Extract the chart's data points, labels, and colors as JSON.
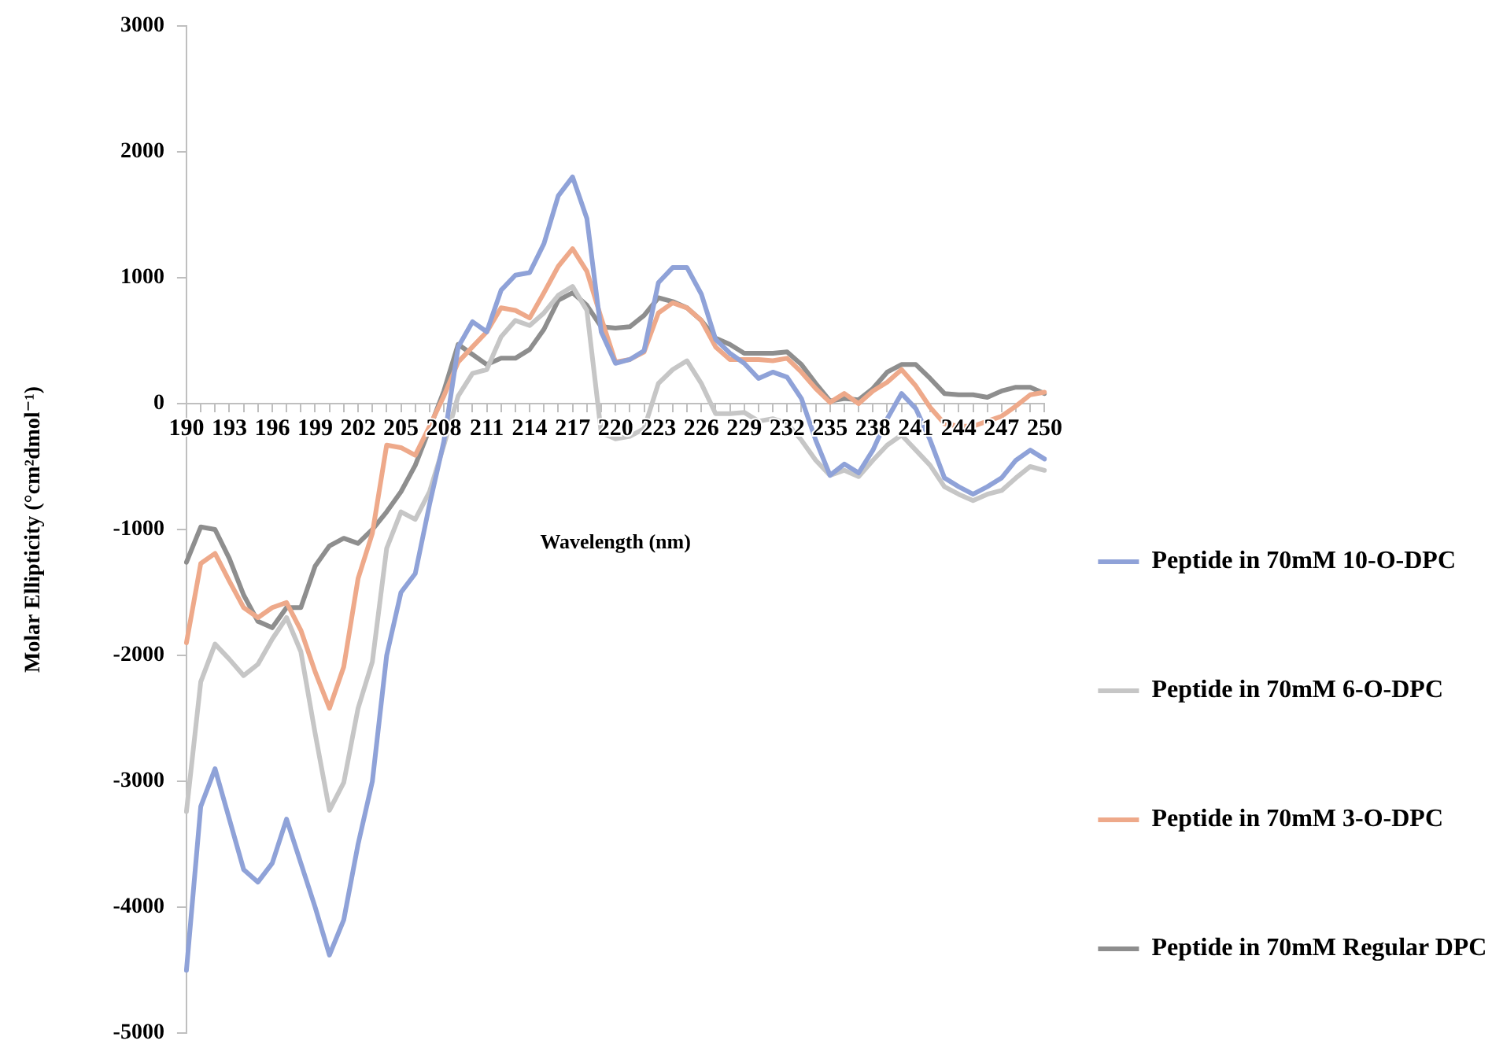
{
  "chart_data": {
    "type": "line",
    "xlabel": "Wavelength (nm)",
    "ylabel": "Molar Ellipticity (°cm²dmol⁻¹)",
    "categories": [
      "190",
      null,
      null,
      "193",
      null,
      null,
      "196",
      null,
      null,
      "199",
      null,
      null,
      "202",
      null,
      null,
      "205",
      null,
      null,
      "208",
      null,
      null,
      "211",
      null,
      null,
      "214",
      null,
      null,
      "217",
      null,
      null,
      "220",
      null,
      null,
      "223",
      null,
      null,
      "226",
      null,
      null,
      "229",
      null,
      null,
      "232",
      null,
      null,
      "235",
      null,
      null,
      "238",
      null,
      null,
      "241",
      null,
      null,
      "244",
      null,
      null,
      "247",
      null,
      null,
      "250"
    ],
    "series": [
      {
        "name": "Peptide in 70mM 10-O-DPC",
        "color": "#8fa2d8",
        "values": [
          -4500,
          -3200,
          -2900,
          -3300,
          -3700,
          -3800,
          -3650,
          -3300,
          -3650,
          -4000,
          -4380,
          -4100,
          -3500,
          -3000,
          -2000,
          -1500,
          -1350,
          -800,
          -300,
          450,
          650,
          570,
          900,
          1020,
          1040,
          1270,
          1650,
          1800,
          1470,
          570,
          320,
          350,
          420,
          960,
          1080,
          1080,
          870,
          510,
          400,
          320,
          200,
          250,
          210,
          40,
          -290,
          -570,
          -480,
          -550,
          -370,
          -120,
          80,
          -40,
          -290,
          -590,
          -660,
          -720,
          -660,
          -590,
          -450,
          -370,
          -440
        ]
      },
      {
        "name": "Peptide in 70mM 6-O-DPC",
        "color": "#c6c6c6",
        "values": [
          -3240,
          -2210,
          -1910,
          -2030,
          -2160,
          -2070,
          -1870,
          -1700,
          -1970,
          -2620,
          -3230,
          -3010,
          -2420,
          -2050,
          -1150,
          -860,
          -920,
          -700,
          -330,
          60,
          240,
          270,
          530,
          660,
          620,
          720,
          860,
          930,
          740,
          -230,
          -280,
          -260,
          -200,
          160,
          270,
          340,
          160,
          -80,
          -80,
          -70,
          -140,
          -120,
          -160,
          -290,
          -450,
          -570,
          -530,
          -580,
          -450,
          -330,
          -250,
          -370,
          -490,
          -660,
          -720,
          -770,
          -720,
          -690,
          -590,
          -500,
          -530
        ]
      },
      {
        "name": "Peptide in 70mM 3-O-DPC",
        "color": "#eea98a",
        "values": [
          -1900,
          -1270,
          -1190,
          -1410,
          -1620,
          -1700,
          -1620,
          -1580,
          -1800,
          -2130,
          -2420,
          -2090,
          -1390,
          -1030,
          -330,
          -350,
          -410,
          -180,
          60,
          330,
          450,
          570,
          760,
          740,
          680,
          880,
          1090,
          1230,
          1050,
          680,
          330,
          350,
          410,
          720,
          800,
          760,
          660,
          450,
          350,
          350,
          350,
          340,
          360,
          250,
          120,
          10,
          80,
          0,
          100,
          170,
          270,
          140,
          -30,
          -160,
          -180,
          -180,
          -140,
          -100,
          -20,
          70,
          90
        ]
      },
      {
        "name": "Peptide in 70mM Regular DPC",
        "color": "#8e8e8e",
        "values": [
          -1260,
          -980,
          -1000,
          -1230,
          -1520,
          -1730,
          -1780,
          -1620,
          -1620,
          -1290,
          -1130,
          -1070,
          -1110,
          -1000,
          -860,
          -700,
          -490,
          -200,
          100,
          470,
          390,
          310,
          360,
          360,
          430,
          590,
          820,
          880,
          780,
          610,
          600,
          610,
          700,
          840,
          810,
          760,
          660,
          520,
          470,
          400,
          400,
          400,
          410,
          310,
          160,
          20,
          40,
          30,
          120,
          250,
          310,
          310,
          200,
          80,
          70,
          70,
          50,
          100,
          130,
          130,
          80
        ]
      }
    ],
    "ylim": [
      -5000,
      3000
    ],
    "yticks": [
      -5000,
      -4000,
      -3000,
      -2000,
      -1000,
      0,
      1000,
      2000,
      3000
    ],
    "grid": false,
    "legend": "right",
    "marker": "none",
    "line_style": "solid"
  }
}
